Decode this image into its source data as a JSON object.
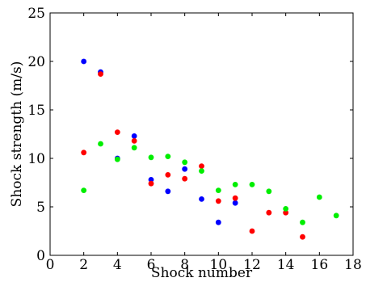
{
  "chart_data": {
    "type": "scatter",
    "title": "",
    "xlabel": "Shock number",
    "ylabel": "Shock strength (m/s)",
    "xlim": [
      0,
      18
    ],
    "ylim": [
      0,
      25
    ],
    "xticks": [
      0,
      2,
      4,
      6,
      8,
      10,
      12,
      14,
      16,
      18
    ],
    "yticks": [
      0,
      5,
      10,
      15,
      20,
      25
    ],
    "grid": false,
    "series": [
      {
        "color": "#0000ff",
        "points": [
          {
            "x": 2,
            "y": 20.0
          },
          {
            "x": 3,
            "y": 18.9
          },
          {
            "x": 4,
            "y": 10.0
          },
          {
            "x": 5,
            "y": 12.3
          },
          {
            "x": 6,
            "y": 7.8
          },
          {
            "x": 7,
            "y": 6.6
          },
          {
            "x": 8,
            "y": 8.9
          },
          {
            "x": 9,
            "y": 5.8
          },
          {
            "x": 10,
            "y": 3.4
          },
          {
            "x": 11,
            "y": 5.4
          }
        ]
      },
      {
        "color": "#ff0000",
        "points": [
          {
            "x": 2,
            "y": 10.6
          },
          {
            "x": 3,
            "y": 18.7
          },
          {
            "x": 4,
            "y": 12.7
          },
          {
            "x": 5,
            "y": 11.8
          },
          {
            "x": 6,
            "y": 7.4
          },
          {
            "x": 7,
            "y": 8.3
          },
          {
            "x": 8,
            "y": 7.9
          },
          {
            "x": 9,
            "y": 9.2
          },
          {
            "x": 10,
            "y": 5.6
          },
          {
            "x": 11,
            "y": 5.9
          },
          {
            "x": 12,
            "y": 2.5
          },
          {
            "x": 13,
            "y": 4.4
          },
          {
            "x": 14,
            "y": 4.4
          },
          {
            "x": 15,
            "y": 1.9
          }
        ]
      },
      {
        "color": "#00ee00",
        "points": [
          {
            "x": 2,
            "y": 6.7
          },
          {
            "x": 3,
            "y": 11.5
          },
          {
            "x": 4,
            "y": 9.9
          },
          {
            "x": 5,
            "y": 11.1
          },
          {
            "x": 6,
            "y": 10.1
          },
          {
            "x": 7,
            "y": 10.2
          },
          {
            "x": 8,
            "y": 9.6
          },
          {
            "x": 9,
            "y": 8.7
          },
          {
            "x": 10,
            "y": 6.7
          },
          {
            "x": 11,
            "y": 7.3
          },
          {
            "x": 12,
            "y": 7.3
          },
          {
            "x": 13,
            "y": 6.6
          },
          {
            "x": 14,
            "y": 4.8
          },
          {
            "x": 15,
            "y": 3.4
          },
          {
            "x": 16,
            "y": 6.0
          },
          {
            "x": 17,
            "y": 4.1
          }
        ]
      }
    ]
  }
}
